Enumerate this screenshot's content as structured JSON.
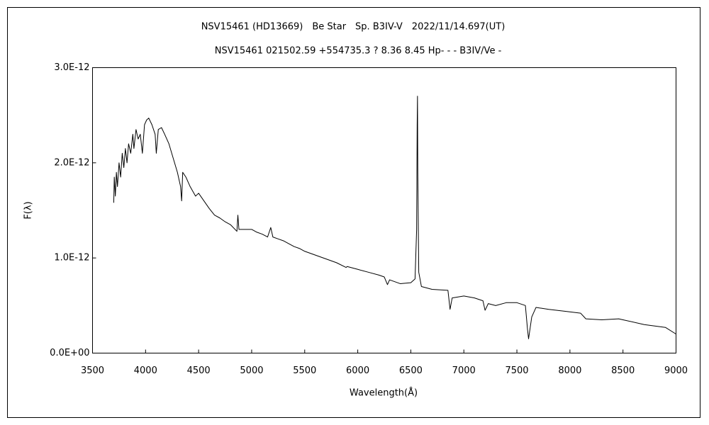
{
  "chart_data": {
    "type": "line",
    "title": "NSV15461 (HD13669)　Be Star　Sp. B3IV-V　2022/11/14.697(UT)",
    "subtitle": "NSV15461 021502.59 +554735.3 ? 8.36 8.45 Hp- - - B3IV/Ve -",
    "xlabel": "Wavelength(Å)",
    "ylabel": "F(λ)",
    "xlim": [
      3500,
      9000
    ],
    "ylim": [
      0,
      3e-12
    ],
    "xticks": [
      3500,
      4000,
      4500,
      5000,
      5500,
      6000,
      6500,
      7000,
      7500,
      8000,
      8500,
      9000
    ],
    "yticks": [
      {
        "value": 0,
        "label": "0.0E+00"
      },
      {
        "value": 1e-12,
        "label": "1.0E-12"
      },
      {
        "value": 2e-12,
        "label": "2.0E-12"
      },
      {
        "value": 3e-12,
        "label": "3.0E-12"
      }
    ],
    "series": [
      {
        "color": "#000000",
        "x": [
          3700,
          3705,
          3715,
          3725,
          3735,
          3750,
          3765,
          3780,
          3795,
          3810,
          3825,
          3840,
          3860,
          3880,
          3890,
          3910,
          3930,
          3950,
          3970,
          3990,
          4010,
          4030,
          4060,
          4090,
          4101,
          4120,
          4150,
          4180,
          4220,
          4260,
          4300,
          4330,
          4340,
          4350,
          4380,
          4420,
          4471,
          4500,
          4550,
          4600,
          4650,
          4700,
          4750,
          4800,
          4861,
          4870,
          4880,
          4920,
          5000,
          5050,
          5100,
          5150,
          5180,
          5200,
          5250,
          5300,
          5350,
          5400,
          5450,
          5500,
          5600,
          5700,
          5800,
          5890,
          5900,
          6000,
          6100,
          6200,
          6250,
          6280,
          6300,
          6400,
          6500,
          6540,
          6555,
          6560,
          6563,
          6566,
          6575,
          6600,
          6700,
          6850,
          6870,
          6890,
          7000,
          7100,
          7180,
          7200,
          7230,
          7300,
          7400,
          7500,
          7580,
          7600,
          7610,
          7640,
          7680,
          7800,
          7950,
          8100,
          8150,
          8300,
          8460,
          8500,
          8700,
          8900,
          9000
        ],
        "values": [
          1.58e-12,
          1.85e-12,
          1.65e-12,
          1.9e-12,
          1.75e-12,
          2e-12,
          1.85e-12,
          2.1e-12,
          1.95e-12,
          2.15e-12,
          2e-12,
          2.2e-12,
          2.1e-12,
          2.3e-12,
          2.15e-12,
          2.35e-12,
          2.25e-12,
          2.3e-12,
          2.1e-12,
          2.4e-12,
          2.45e-12,
          2.47e-12,
          2.4e-12,
          2.3e-12,
          2.1e-12,
          2.35e-12,
          2.37e-12,
          2.3e-12,
          2.2e-12,
          2.05e-12,
          1.9e-12,
          1.75e-12,
          1.6e-12,
          1.9e-12,
          1.85e-12,
          1.75e-12,
          1.65e-12,
          1.68e-12,
          1.6e-12,
          1.52e-12,
          1.45e-12,
          1.42e-12,
          1.38e-12,
          1.35e-12,
          1.28e-12,
          1.45e-12,
          1.3e-12,
          1.3e-12,
          1.3e-12,
          1.27e-12,
          1.25e-12,
          1.22e-12,
          1.32e-12,
          1.22e-12,
          1.2e-12,
          1.18e-12,
          1.15e-12,
          1.12e-12,
          1.1e-12,
          1.07e-12,
          1.03e-12,
          9.9e-13,
          9.5e-13,
          9e-13,
          9.1e-13,
          8.8e-13,
          8.5e-13,
          8.2e-13,
          8e-13,
          7.2e-13,
          7.7e-13,
          7.3e-13,
          7.4e-13,
          7.8e-13,
          1.3e-12,
          2.4e-12,
          2.7e-12,
          1.9e-12,
          8.5e-13,
          7e-13,
          6.7e-13,
          6.6e-13,
          4.6e-13,
          5.8e-13,
          6e-13,
          5.8e-13,
          5.5e-13,
          4.5e-13,
          5.2e-13,
          5e-13,
          5.3e-13,
          5.3e-13,
          5e-13,
          2.5e-13,
          1.5e-13,
          3.8e-13,
          4.8e-13,
          4.6e-13,
          4.4e-13,
          4.2e-13,
          3.6e-13,
          3.5e-13,
          3.6e-13,
          3.5e-13,
          3e-13,
          2.7e-13,
          2e-13
        ]
      }
    ]
  }
}
